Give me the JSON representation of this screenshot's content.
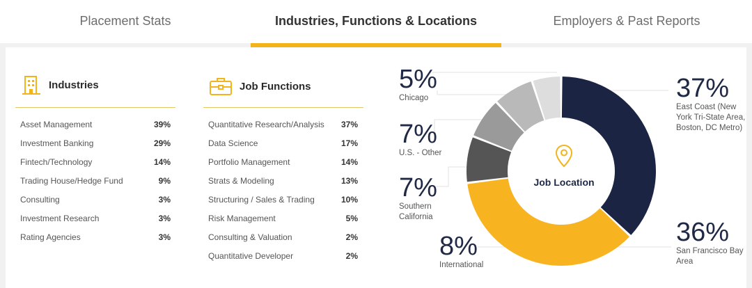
{
  "tabs": [
    {
      "label": "Placement Stats",
      "active": false
    },
    {
      "label": "Industries, Functions & Locations",
      "active": true
    },
    {
      "label": "Employers & Past Reports",
      "active": false
    }
  ],
  "industries": {
    "title": "Industries",
    "icon": "building-icon",
    "rows": [
      {
        "name": "Asset Management",
        "pct": "39%"
      },
      {
        "name": "Investment Banking",
        "pct": "29%"
      },
      {
        "name": "Fintech/Technology",
        "pct": "14%"
      },
      {
        "name": "Trading House/Hedge Fund",
        "pct": "9%"
      },
      {
        "name": "Consulting",
        "pct": "3%"
      },
      {
        "name": "Investment Research",
        "pct": "3%"
      },
      {
        "name": "Rating Agencies",
        "pct": "3%"
      }
    ]
  },
  "functions": {
    "title": "Job Functions",
    "icon": "briefcase-icon",
    "rows": [
      {
        "name": "Quantitative Research/Analysis",
        "pct": "37%"
      },
      {
        "name": "Data Science",
        "pct": "17%"
      },
      {
        "name": "Portfolio Management",
        "pct": "14%"
      },
      {
        "name": "Strats & Modeling",
        "pct": "13%"
      },
      {
        "name": "Structuring / Sales & Trading",
        "pct": "10%"
      },
      {
        "name": "Risk Management",
        "pct": "5%"
      },
      {
        "name": "Consulting & Valuation",
        "pct": "2%"
      },
      {
        "name": "Quantitative Developer",
        "pct": "2%"
      }
    ]
  },
  "location": {
    "center_label": "Job Location",
    "icon": "map-pin-icon"
  },
  "chart_data": {
    "type": "pie",
    "title": "Job Location",
    "slices": [
      {
        "label": "East Coast (New York Tri-State Area, Boston, DC Metro)",
        "value": 37,
        "display": "37%",
        "color": "#1c2443"
      },
      {
        "label": "San Francisco Bay Area",
        "value": 36,
        "display": "36%",
        "color": "#f8b321"
      },
      {
        "label": "International",
        "value": 8,
        "display": "8%",
        "color": "#555555"
      },
      {
        "label": "Southern California",
        "value": 7,
        "display": "7%",
        "color": "#9a9a9a"
      },
      {
        "label": "U.S. - Other",
        "value": 7,
        "display": "7%",
        "color": "#b9b9b9"
      },
      {
        "label": "Chicago",
        "value": 5,
        "display": "5%",
        "color": "#dddddd"
      }
    ]
  },
  "colors": {
    "accent": "#f3b31a",
    "navy": "#1c2443"
  }
}
